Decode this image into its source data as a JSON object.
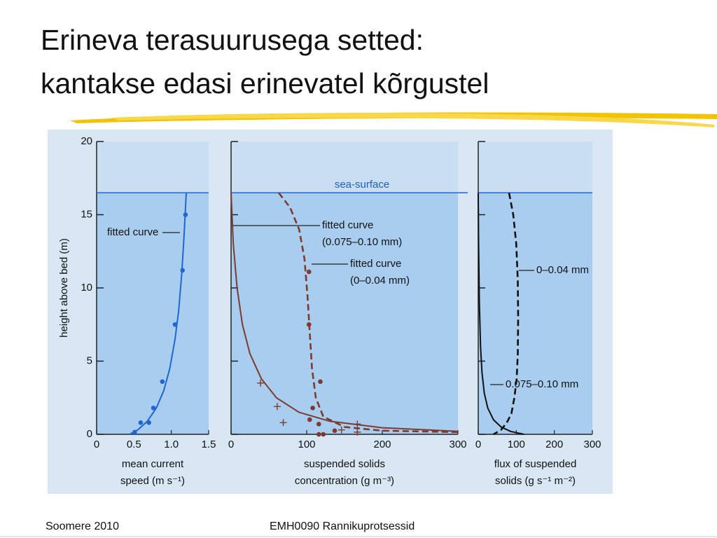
{
  "slide": {
    "title": [
      "Erineva terasuurusega setted:",
      "kantakse edasi erinevatel kõrgustel"
    ],
    "footer": [
      "Soomere 2010",
      "EMH0090 Rannikuprotsessid"
    ]
  },
  "chart_data": [
    {
      "type": "line",
      "xlim": [
        0,
        1.5
      ],
      "xticks": [
        0,
        0.5,
        {
          "value": 1,
          "label": "1.0"
        },
        1.5
      ],
      "ylim": [
        0,
        20
      ],
      "yticks": [
        0,
        5,
        10,
        15,
        20
      ],
      "ytick_labels": true,
      "ylabel": "height above bed (m)",
      "xlabel": [
        "mean current",
        "speed (m s⁻¹)"
      ],
      "hline": 16.5,
      "series": [
        {
          "label": [
            "fitted curve"
          ],
          "mode": "line",
          "color": "#1f66d1",
          "x": [
            0.44,
            0.55,
            0.68,
            0.8,
            0.9,
            0.98,
            1.05,
            1.1,
            1.14,
            1.17,
            1.2
          ],
          "values": [
            0,
            0.3,
            0.9,
            1.8,
            3,
            4.5,
            6.5,
            8.5,
            11,
            13.5,
            16.5
          ]
        },
        {
          "mode": "markers",
          "color": "#1f66d1",
          "x": [
            0.51,
            0.59,
            0.7,
            0.76,
            0.88,
            1.05,
            1.15,
            1.19
          ],
          "values": [
            0.15,
            0.8,
            0.8,
            1.8,
            3.6,
            7.5,
            11.2,
            15
          ]
        }
      ]
    },
    {
      "type": "line",
      "xlim": [
        0,
        300
      ],
      "xticks": [
        0,
        100,
        200,
        300
      ],
      "ylim": [
        0,
        20
      ],
      "yticks": [
        0,
        5,
        10,
        15,
        20
      ],
      "ytick_labels": false,
      "xlabel": [
        "suspended solids",
        "concentration (g m⁻³)"
      ],
      "hline": 16.5,
      "hline_label": "sea-surface",
      "series": [
        {
          "label": [
            "fitted curve",
            "(0.075–0.10 mm)"
          ],
          "mode": "line",
          "color": "#7b3b30",
          "x": [
            0,
            3,
            8,
            15,
            25,
            40,
            60,
            90,
            130,
            200,
            300
          ],
          "values": [
            16.5,
            13,
            10,
            7.5,
            5.5,
            3.8,
            2.5,
            1.5,
            0.9,
            0.45,
            0.2
          ]
        },
        {
          "label": [
            "fitted curve",
            "(0–0.04 mm)"
          ],
          "mode": "dashed",
          "color": "#7b3b30",
          "x": [
            63,
            78,
            90,
            97,
            101,
            104,
            107,
            112,
            122,
            150,
            200,
            300
          ],
          "values": [
            16.5,
            15.5,
            14,
            12,
            9.5,
            7,
            4.5,
            2.5,
            1.2,
            0.5,
            0.25,
            0.15
          ]
        },
        {
          "mode": "markers",
          "color": "#7b3b30",
          "x": [
            103,
            103,
            118,
            108,
            104,
            116,
            116,
            122,
            137
          ],
          "values": [
            11.1,
            7.5,
            3.6,
            1.8,
            1,
            0.7,
            0,
            0,
            0.25
          ]
        },
        {
          "mode": "plus",
          "color": "#7b3b30",
          "x": [
            39,
            61,
            69,
            167,
            146,
            167
          ],
          "values": [
            3.5,
            1.9,
            0.8,
            0.7,
            0.3,
            0.15
          ]
        }
      ]
    },
    {
      "type": "line",
      "xlim": [
        0,
        300
      ],
      "xticks": [
        0,
        100,
        200,
        300
      ],
      "ylim": [
        0,
        20
      ],
      "yticks": [
        0,
        5,
        10,
        15,
        20
      ],
      "ytick_labels": false,
      "xlabel": [
        "flux of suspended",
        "solids (g s⁻¹ m⁻²)"
      ],
      "hline": 16.5,
      "series": [
        {
          "label": [
            "0.075–0.10 mm"
          ],
          "mode": "line",
          "color": "#111111",
          "x": [
            0,
            1,
            3,
            6,
            10,
            16,
            25,
            40,
            60,
            85,
            120
          ],
          "values": [
            16.5,
            13,
            9,
            6,
            4.2,
            2.8,
            1.8,
            1,
            0.5,
            0.2,
            0
          ]
        },
        {
          "label": [
            "0–0.04 mm"
          ],
          "mode": "dashed",
          "color": "#111111",
          "x": [
            81,
            92,
            100,
            104,
            105,
            104,
            101,
            95,
            87,
            75,
            60,
            40
          ],
          "values": [
            16.5,
            15,
            13,
            10.5,
            8,
            5.5,
            3.8,
            2.5,
            1.4,
            0.8,
            0.3,
            0
          ]
        }
      ]
    }
  ]
}
